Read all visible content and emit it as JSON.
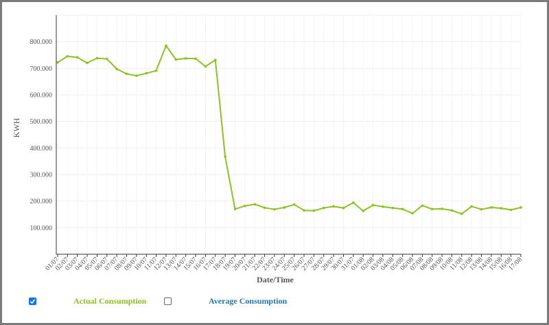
{
  "colors": {
    "actual": "#8cc220",
    "average": "#1f77b4",
    "axis": "#333333",
    "grid": "#eeeeee",
    "checkbox": "#1a73e8"
  },
  "legend": {
    "items": [
      {
        "label": "Actual Consumption",
        "checked": true,
        "color": "#8cc220"
      },
      {
        "label": "Average Consumption",
        "checked": false,
        "color": "#1f77b4"
      }
    ]
  },
  "chart_data": {
    "type": "line",
    "title": "",
    "xlabel": "Date/Time",
    "ylabel": "KWH",
    "ylim": [
      0,
      900
    ],
    "yticks": [
      100,
      200,
      300,
      400,
      500,
      600,
      700,
      800
    ],
    "ytick_labels": [
      "100.000",
      "200.000",
      "300.000",
      "400.000",
      "500.000",
      "600.000",
      "700.000",
      "800.000"
    ],
    "grid": true,
    "legend_placement": "bottom-left",
    "x": [
      "01/07",
      "02/07",
      "03/07",
      "04/07",
      "05/07",
      "06/07",
      "07/07",
      "08/07",
      "09/07",
      "10/07",
      "11/07",
      "12/07",
      "13/07",
      "14/07",
      "15/07",
      "16/07",
      "17/07",
      "18/07",
      "19/07",
      "20/07",
      "21/07",
      "22/07",
      "23/07",
      "24/07",
      "25/07",
      "26/07",
      "27/07",
      "28/07",
      "29/07",
      "30/07",
      "31/07",
      "01/08",
      "02/08",
      "03/08",
      "04/08",
      "05/08",
      "06/08",
      "07/08",
      "08/08",
      "09/08",
      "10/08",
      "11/08",
      "12/08",
      "13/08",
      "14/08",
      "15/08",
      "16/08",
      "17/08"
    ],
    "series": [
      {
        "name": "Actual Consumption",
        "values": [
          722,
          745,
          741,
          720,
          738,
          735,
          697,
          679,
          672,
          681,
          691,
          785,
          733,
          737,
          736,
          707,
          731,
          367,
          170,
          182,
          188,
          175,
          169,
          176,
          187,
          165,
          164,
          174,
          180,
          174,
          194,
          163,
          185,
          179,
          174,
          170,
          154,
          183,
          170,
          171,
          165,
          152,
          180,
          169,
          176,
          173,
          167,
          176
        ]
      }
    ]
  }
}
